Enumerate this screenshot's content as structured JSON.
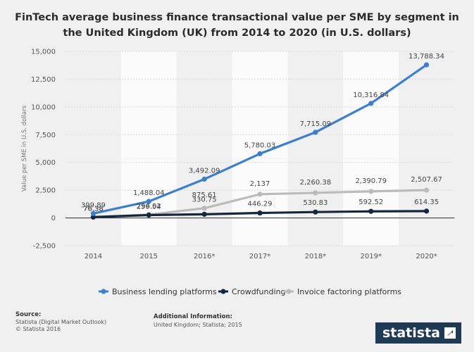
{
  "title_lines": [
    "FinTech average business finance transactional value per SME by segment in",
    "the United Kingdom (UK) from 2014 to 2020 (in U.S. dollars)"
  ],
  "chart_data": {
    "type": "line",
    "title": "FinTech average business finance transactional value per SME by segment in the United Kingdom (UK) from 2014 to 2020 (in U.S. dollars)",
    "xlabel": "",
    "ylabel": "Value per SME in U.S. dollars",
    "categories": [
      "2014",
      "2015",
      "2016*",
      "2017*",
      "2018*",
      "2019*",
      "2020*"
    ],
    "ylim": [
      -2500,
      15000
    ],
    "yticks": [
      -2500,
      0,
      2500,
      5000,
      7500,
      10000,
      12500,
      15000
    ],
    "ytick_labels": [
      "-2,500",
      "0",
      "2,500",
      "5,000",
      "7,500",
      "10,000",
      "12,500",
      "15,000"
    ],
    "grid": true,
    "legend_position": "bottom",
    "series": [
      {
        "name": "Business lending platforms",
        "color": "#3a7fd0",
        "values": [
          399.89,
          1488.04,
          3492.09,
          5780.03,
          7715.09,
          10316.84,
          13788.34
        ],
        "labels": [
          "399.89",
          "1,488.04",
          "3,492.09",
          "5,780.03",
          "7,715.09",
          "10,316.84",
          "13,788.34"
        ]
      },
      {
        "name": "Crowdfunding",
        "color": "#13283d",
        "values": [
          76.38,
          259.54,
          330.75,
          446.29,
          530.83,
          592.52,
          614.35
        ],
        "labels": [
          "76.38",
          "259.54",
          "330.75",
          "446.29",
          "530.83",
          "592.52",
          "614.35"
        ]
      },
      {
        "name": "Invoice factoring platforms",
        "color": "#bbbbbb",
        "values": [
          76.38,
          296.02,
          875.61,
          2137,
          2260.38,
          2390.79,
          2507.67
        ],
        "labels": [
          "76.38",
          "296.02",
          "875.61",
          "2,137",
          "2,260.38",
          "2,390.79",
          "2,507.67"
        ]
      }
    ]
  },
  "source": {
    "header": "Source:",
    "lines": [
      "Statista (Digital Market Outlook)",
      "© Statista 2016"
    ]
  },
  "additional_info": {
    "header": "Additional Information:",
    "text": "United Kingdom; Statista; 2015"
  },
  "logo": {
    "text": "statista"
  }
}
